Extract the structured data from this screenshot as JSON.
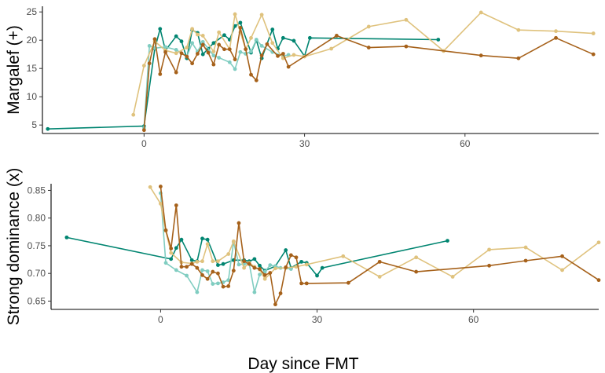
{
  "shared_xlabel": "Day since FMT",
  "chart_data": [
    {
      "type": "line",
      "ylabel": "Margalef (+)",
      "xlim": [
        -19,
        85
      ],
      "ylim": [
        3.5,
        26
      ],
      "xticks": [
        0,
        30,
        60
      ],
      "yticks": [
        5,
        10,
        15,
        20,
        25
      ],
      "grid": false,
      "series": [
        {
          "color": "#018571",
          "x": [
            -18,
            0,
            2,
            3,
            4,
            6,
            7,
            8,
            9,
            10,
            11,
            12,
            13,
            15,
            16,
            17,
            18,
            20,
            21,
            22,
            24,
            25,
            26,
            28,
            30,
            31,
            55
          ],
          "y": [
            4.3,
            4.8,
            18.5,
            22.0,
            18.2,
            20.7,
            19.8,
            16.8,
            21.8,
            21.3,
            17.5,
            18.5,
            19.5,
            20.9,
            20.1,
            22.5,
            23.1,
            17.8,
            20.0,
            16.8,
            21.9,
            18.5,
            20.4,
            19.9,
            17.2,
            20.4,
            20.1
          ]
        },
        {
          "color": "#80cdc1",
          "x": [
            0,
            1,
            2,
            4,
            6,
            8,
            9,
            10,
            11,
            13,
            14,
            16,
            17,
            18,
            19,
            20,
            21,
            22,
            24,
            26,
            27
          ],
          "y": [
            4.5,
            19.0,
            18.6,
            18.8,
            18.3,
            17.1,
            19.5,
            18.0,
            19.7,
            17.3,
            16.9,
            16.1,
            14.9,
            17.9,
            17.6,
            18.0,
            20.1,
            19.0,
            17.9,
            17.2,
            17.4
          ]
        },
        {
          "color": "#dfc27d",
          "x": [
            -2,
            0,
            2,
            4,
            6,
            8,
            9,
            10,
            11,
            13,
            14,
            16,
            17,
            18,
            19,
            20,
            22,
            24,
            26,
            28,
            30,
            35,
            42,
            49,
            56,
            63,
            70,
            77,
            84
          ],
          "y": [
            6.8,
            15.5,
            19.8,
            18.2,
            17.7,
            18.7,
            22.0,
            21.0,
            20.8,
            18.0,
            21.4,
            18.4,
            24.6,
            21.4,
            18.4,
            20.4,
            24.5,
            19.5,
            16.8,
            17.4,
            17.1,
            18.5,
            22.4,
            23.6,
            18.1,
            24.9,
            21.8,
            21.6,
            21.2
          ]
        },
        {
          "color": "#a6611a",
          "x": [
            0,
            1,
            2,
            3,
            4,
            6,
            7,
            8,
            9,
            10,
            11,
            12,
            13,
            14,
            15,
            16,
            17,
            18,
            19,
            20,
            21,
            22,
            23,
            25,
            26,
            27,
            36,
            42,
            49,
            63,
            70,
            77,
            84
          ],
          "y": [
            4.1,
            15.9,
            20.2,
            14.0,
            17.9,
            14.3,
            17.7,
            17.1,
            15.9,
            17.6,
            19.2,
            17.8,
            15.7,
            19.2,
            18.4,
            18.4,
            16.6,
            22.2,
            18.4,
            13.9,
            12.9,
            17.3,
            19.3,
            17.2,
            17.6,
            15.3,
            20.8,
            18.7,
            18.9,
            17.3,
            16.8,
            20.4,
            17.5
          ]
        }
      ]
    },
    {
      "type": "line",
      "ylabel": "Strong dominance (x)",
      "xlim": [
        -21,
        84
      ],
      "ylim": [
        0.635,
        0.862
      ],
      "xticks": [
        0,
        30,
        60
      ],
      "yticks": [
        0.65,
        0.7,
        0.75,
        0.8,
        0.85
      ],
      "grid": false,
      "series": [
        {
          "color": "#018571",
          "x": [
            -18,
            2,
            3,
            4,
            6,
            7,
            8,
            9,
            11,
            12,
            14,
            16,
            17,
            18,
            19,
            20,
            22,
            24,
            25,
            27,
            28,
            30,
            31,
            55
          ],
          "y": [
            0.765,
            0.726,
            0.746,
            0.761,
            0.724,
            0.722,
            0.763,
            0.761,
            0.715,
            0.717,
            0.724,
            0.724,
            0.722,
            0.726,
            0.714,
            0.705,
            0.713,
            0.742,
            0.71,
            0.721,
            0.719,
            0.696,
            0.71,
            0.759
          ]
        },
        {
          "color": "#80cdc1",
          "x": [
            0,
            1,
            3,
            5,
            7,
            8,
            9,
            10,
            11,
            12,
            13,
            14,
            15,
            16,
            17,
            18,
            19,
            20,
            21,
            22,
            23,
            25
          ],
          "y": [
            0.845,
            0.719,
            0.706,
            0.696,
            0.666,
            0.706,
            0.704,
            0.681,
            0.682,
            0.684,
            0.688,
            0.757,
            0.716,
            0.717,
            0.718,
            0.666,
            0.698,
            0.703,
            0.715,
            0.713,
            0.71,
            0.708
          ]
        },
        {
          "color": "#dfc27d",
          "x": [
            -2,
            0,
            1,
            2,
            4,
            6,
            7,
            8,
            9,
            10,
            11,
            13,
            14,
            16,
            17,
            18,
            19,
            20,
            22,
            24,
            26,
            28,
            35,
            42,
            49,
            56,
            63,
            70,
            77,
            84
          ],
          "y": [
            0.856,
            0.826,
            0.777,
            0.737,
            0.72,
            0.718,
            0.721,
            0.722,
            0.753,
            0.722,
            0.722,
            0.735,
            0.758,
            0.71,
            0.719,
            0.712,
            0.707,
            0.69,
            0.709,
            0.71,
            0.712,
            0.716,
            0.731,
            0.694,
            0.729,
            0.694,
            0.743,
            0.747,
            0.706,
            0.756
          ]
        },
        {
          "color": "#a6611a",
          "x": [
            0,
            1,
            2,
            3,
            4,
            5,
            6,
            7,
            8,
            9,
            10,
            11,
            12,
            13,
            14,
            15,
            16,
            17,
            18,
            19,
            20,
            21,
            22,
            23,
            24,
            25,
            26,
            27,
            28,
            36,
            42,
            49,
            63,
            70,
            77,
            84
          ],
          "y": [
            0.857,
            0.778,
            0.745,
            0.823,
            0.712,
            0.712,
            0.717,
            0.71,
            0.697,
            0.69,
            0.703,
            0.7,
            0.676,
            0.677,
            0.705,
            0.791,
            0.722,
            0.717,
            0.71,
            0.708,
            0.697,
            0.701,
            0.644,
            0.664,
            0.711,
            0.733,
            0.729,
            0.682,
            0.682,
            0.683,
            0.721,
            0.703,
            0.714,
            0.723,
            0.731,
            0.688
          ]
        }
      ]
    }
  ]
}
